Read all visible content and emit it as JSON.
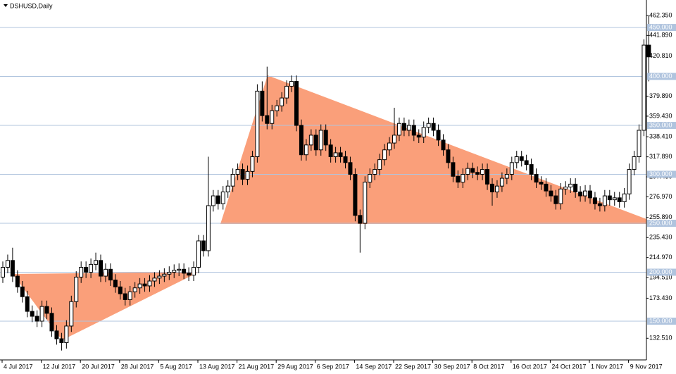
{
  "chart_data": {
    "type": "candlestick",
    "title": "DSHUSD,Daily",
    "categories": [
      "4 Jul 2017",
      null,
      null,
      null,
      null,
      null,
      null,
      null,
      "12 Jul 2017",
      null,
      null,
      null,
      null,
      null,
      null,
      null,
      "20 Jul 2017",
      null,
      null,
      null,
      null,
      null,
      null,
      null,
      "28 Jul 2017",
      null,
      null,
      null,
      null,
      null,
      null,
      null,
      "5 Aug 2017",
      null,
      null,
      null,
      null,
      null,
      null,
      null,
      "13 Aug 2017",
      null,
      null,
      null,
      null,
      null,
      null,
      null,
      "21 Aug 2017",
      null,
      null,
      null,
      null,
      null,
      null,
      null,
      "29 Aug 2017",
      null,
      null,
      null,
      null,
      null,
      null,
      null,
      "6 Sep 2017",
      null,
      null,
      null,
      null,
      null,
      null,
      null,
      "14 Sep 2017",
      null,
      null,
      null,
      null,
      null,
      null,
      null,
      "22 Sep 2017",
      null,
      null,
      null,
      null,
      null,
      null,
      null,
      "30 Sep 2017",
      null,
      null,
      null,
      null,
      null,
      null,
      null,
      "8 Oct 2017",
      null,
      null,
      null,
      null,
      null,
      null,
      null,
      "16 Oct 2017",
      null,
      null,
      null,
      null,
      null,
      null,
      null,
      "24 Oct 2017",
      null,
      null,
      null,
      null,
      null,
      null,
      null,
      "1 Nov 2017",
      null,
      null,
      null,
      null,
      null,
      null,
      null,
      "9 Nov 2017",
      null,
      null,
      null,
      null
    ],
    "open": [
      195,
      205,
      212,
      196,
      185,
      175,
      160,
      155,
      150,
      165,
      158,
      140,
      132,
      128,
      145,
      170,
      195,
      205,
      200,
      208,
      212,
      196,
      203,
      192,
      185,
      178,
      172,
      180,
      184,
      188,
      186,
      191,
      194,
      196,
      198,
      200,
      202,
      203,
      199,
      197,
      205,
      232,
      222,
      268,
      278,
      270,
      282,
      288,
      300,
      305,
      295,
      303,
      318,
      385,
      360,
      352,
      365,
      370,
      378,
      390,
      395,
      350,
      320,
      330,
      340,
      325,
      345,
      330,
      318,
      322,
      318,
      312,
      300,
      258,
      250,
      292,
      300,
      305,
      315,
      325,
      332,
      340,
      352,
      345,
      350,
      340,
      338,
      348,
      352,
      345,
      335,
      325,
      312,
      298,
      292,
      300,
      306,
      302,
      300,
      305,
      290,
      282,
      288,
      296,
      300,
      312,
      318,
      314,
      310,
      300,
      292,
      290,
      283,
      278,
      270,
      285,
      287,
      290,
      282,
      278,
      283,
      276,
      270,
      268,
      278,
      274,
      276,
      272,
      280,
      305,
      318,
      345,
      432
    ],
    "high": [
      211,
      218,
      225,
      202,
      191,
      181,
      166,
      161,
      171,
      171,
      164,
      146,
      138,
      151,
      176,
      201,
      211,
      211,
      214,
      220,
      218,
      209,
      209,
      198,
      191,
      184,
      186,
      190,
      194,
      194,
      197,
      200,
      202,
      204,
      206,
      208,
      209,
      209,
      205,
      211,
      238,
      238,
      318,
      284,
      284,
      288,
      294,
      306,
      311,
      311,
      309,
      324,
      392,
      395,
      410,
      371,
      376,
      384,
      396,
      401,
      401,
      356,
      336,
      346,
      346,
      351,
      351,
      336,
      328,
      328,
      324,
      318,
      306,
      264,
      298,
      306,
      311,
      321,
      331,
      338,
      368,
      358,
      358,
      356,
      356,
      346,
      354,
      358,
      358,
      351,
      341,
      331,
      318,
      304,
      306,
      312,
      312,
      308,
      311,
      311,
      296,
      294,
      302,
      306,
      318,
      324,
      324,
      320,
      316,
      306,
      298,
      296,
      289,
      284,
      291,
      293,
      296,
      296,
      288,
      289,
      289,
      282,
      276,
      284,
      284,
      282,
      282,
      286,
      311,
      324,
      351,
      438,
      462
    ],
    "low": [
      189,
      199,
      190,
      179,
      169,
      154,
      149,
      144,
      144,
      152,
      134,
      126,
      120,
      122,
      139,
      164,
      189,
      194,
      194,
      202,
      190,
      190,
      186,
      179,
      172,
      166,
      166,
      174,
      178,
      180,
      180,
      185,
      188,
      190,
      192,
      194,
      196,
      193,
      191,
      191,
      199,
      216,
      216,
      262,
      264,
      264,
      276,
      282,
      294,
      289,
      289,
      297,
      312,
      354,
      346,
      346,
      359,
      364,
      372,
      384,
      344,
      314,
      314,
      324,
      319,
      319,
      324,
      312,
      312,
      312,
      306,
      294,
      252,
      220,
      244,
      286,
      294,
      299,
      309,
      319,
      326,
      334,
      339,
      339,
      334,
      332,
      332,
      342,
      339,
      329,
      319,
      306,
      292,
      286,
      286,
      294,
      296,
      294,
      294,
      284,
      268,
      276,
      282,
      290,
      294,
      306,
      308,
      304,
      294,
      286,
      284,
      277,
      272,
      264,
      264,
      279,
      281,
      276,
      272,
      272,
      270,
      264,
      262,
      262,
      268,
      268,
      266,
      266,
      274,
      299,
      312,
      339,
      395
    ],
    "close": [
      205,
      212,
      196,
      185,
      175,
      160,
      155,
      150,
      165,
      158,
      140,
      132,
      128,
      145,
      170,
      195,
      205,
      200,
      208,
      212,
      196,
      203,
      192,
      185,
      178,
      172,
      180,
      184,
      188,
      186,
      191,
      194,
      196,
      198,
      200,
      202,
      203,
      199,
      197,
      205,
      232,
      222,
      268,
      278,
      270,
      282,
      288,
      300,
      305,
      295,
      303,
      318,
      385,
      360,
      352,
      365,
      370,
      378,
      390,
      395,
      350,
      320,
      330,
      340,
      325,
      345,
      330,
      318,
      322,
      318,
      312,
      300,
      258,
      250,
      292,
      300,
      305,
      315,
      325,
      332,
      340,
      352,
      345,
      350,
      340,
      338,
      348,
      352,
      345,
      335,
      325,
      312,
      298,
      292,
      300,
      306,
      302,
      300,
      305,
      290,
      282,
      288,
      296,
      300,
      312,
      318,
      314,
      310,
      300,
      292,
      290,
      283,
      278,
      270,
      285,
      287,
      290,
      282,
      278,
      283,
      276,
      270,
      268,
      278,
      274,
      276,
      272,
      280,
      305,
      318,
      345,
      432,
      420
    ],
    "up_color": "#ffffff",
    "down_color": "#000000",
    "level_color": "#b0c4de",
    "ylim": [
      110.4,
      478.1
    ],
    "yticks": [
      {
        "value": 462.35,
        "label": "462.350"
      },
      {
        "value": 441.89,
        "label": "441.890"
      },
      {
        "value": 420.81,
        "label": "420.810"
      },
      {
        "value": 379.89,
        "label": "379.890"
      },
      {
        "value": 359.43,
        "label": "359.430"
      },
      {
        "value": 338.41,
        "label": "338.410"
      },
      {
        "value": 317.89,
        "label": "317.890"
      },
      {
        "value": 297.43,
        "label": "297.430"
      },
      {
        "value": 276.97,
        "label": "276.970"
      },
      {
        "value": 255.89,
        "label": "255.890"
      },
      {
        "value": 235.43,
        "label": "235.430"
      },
      {
        "value": 214.97,
        "label": "214.970"
      },
      {
        "value": 194.51,
        "label": "194.510"
      },
      {
        "value": 173.43,
        "label": "173.430"
      },
      {
        "value": 132.51,
        "label": "132.510"
      }
    ],
    "levels": [
      {
        "value": 450,
        "label": "450.000"
      },
      {
        "value": 400,
        "label": "400.000"
      },
      {
        "value": 350,
        "label": "350.000"
      },
      {
        "value": 300,
        "label": "300.000"
      },
      {
        "value": 250,
        "label": "250.000"
      },
      {
        "value": 200,
        "label": "200.000"
      },
      {
        "value": 150,
        "label": "150.000"
      }
    ]
  }
}
